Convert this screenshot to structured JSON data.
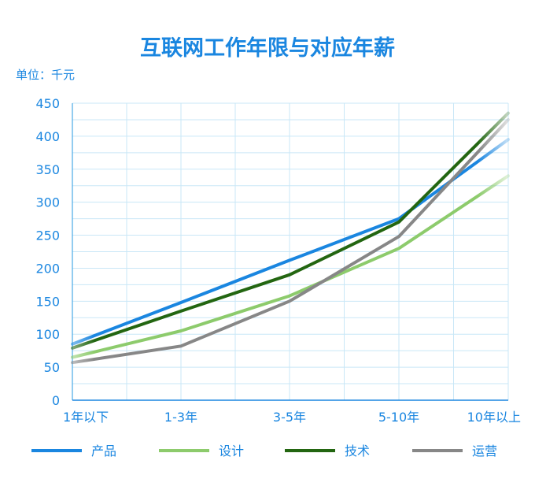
{
  "chart_data": {
    "type": "line",
    "title": "互联网工作年限与对应年薪",
    "unit_label": "单位：千元",
    "categories": [
      "1年以下",
      "1-3年",
      "3-5年",
      "5-10年",
      "10年以上"
    ],
    "y_ticks": [
      0,
      50,
      100,
      150,
      200,
      250,
      300,
      350,
      400,
      450
    ],
    "ylim": [
      0,
      450
    ],
    "grid": true,
    "legend_position": "bottom",
    "series": [
      {
        "name": "产品",
        "color": "#1a86e0",
        "values": [
          85,
          148,
          212,
          275,
          395
        ]
      },
      {
        "name": "设计",
        "color": "#8dcb6c",
        "values": [
          65,
          105,
          158,
          230,
          340
        ]
      },
      {
        "name": "技术",
        "color": "#236611",
        "values": [
          79,
          135,
          190,
          270,
          435
        ]
      },
      {
        "name": "运营",
        "color": "#878787",
        "values": [
          57,
          82,
          150,
          248,
          425
        ]
      }
    ]
  }
}
